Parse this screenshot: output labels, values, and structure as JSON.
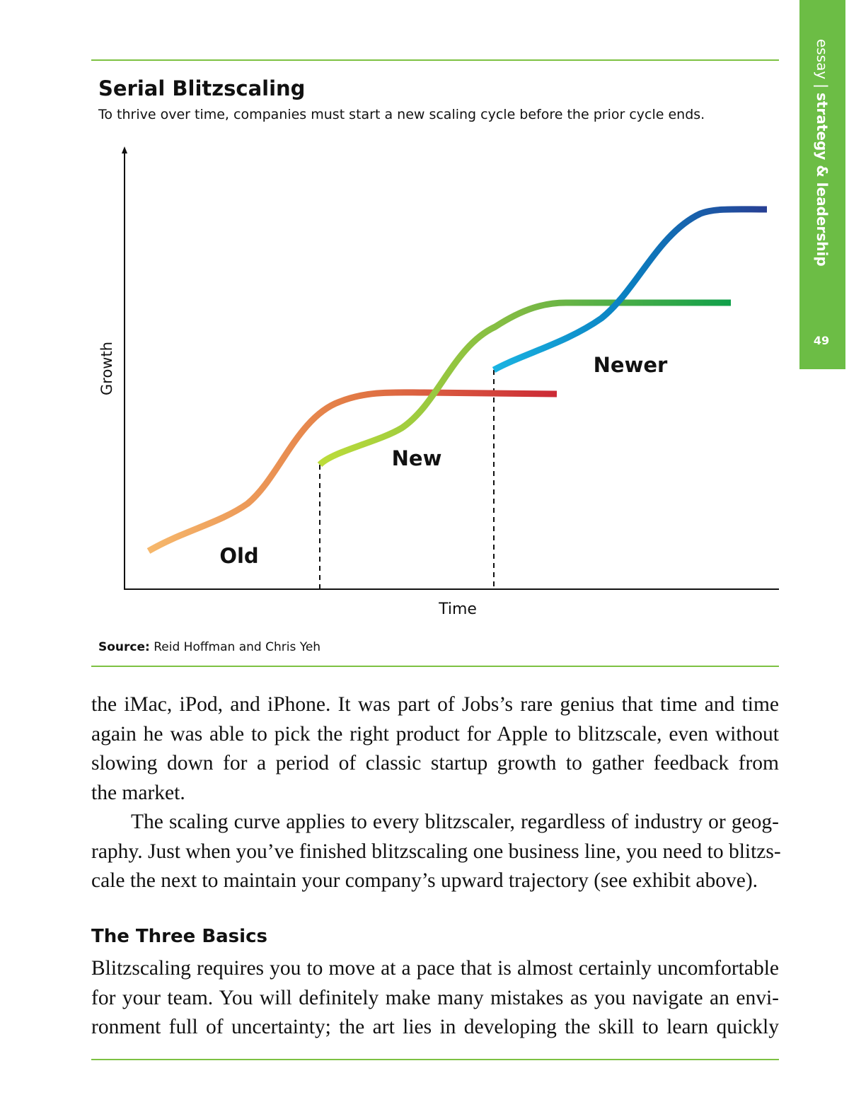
{
  "sidebar": {
    "section": "essay",
    "topic": "strategy & leadership",
    "page_number": "49"
  },
  "figure": {
    "title": "Serial Blitzscaling",
    "subtitle": "To thrive over time, companies must start a new scaling cycle before the prior cycle ends.",
    "y_axis_label": "Growth",
    "x_axis_label": "Time",
    "curve_labels": [
      "Old",
      "New",
      "Newer"
    ],
    "source_label": "Source:",
    "source": "Reid Hoffman and Chris Yeh"
  },
  "body": {
    "paragraphs": [
      {
        "lines": [
          "the iMac, iPod, and iPhone. It was part of Jobs’s rare genius that time and time",
          "again he was able to pick the right product for Apple to blitzscale, even without",
          "slowing down for a period of classic startup growth to gather feedback from",
          "the market."
        ]
      },
      {
        "lines": [
          "The scaling curve applies to every blitzscaler, regardless of industry or geog-",
          "raphy. Just when you’ve finished blitzscaling one business line, you need to blitzs-",
          "cale the next to maintain your company’s upward trajectory (see exhibit above)."
        ]
      }
    ],
    "heading": "The Three Basics",
    "last_paragraph": {
      "lines": [
        "Blitzscaling requires you to move at a pace that is almost certainly uncomfortable",
        "for your team. You will definitely make many mistakes as you navigate an envi-",
        "ronment full of uncertainty; the art lies in developing the skill to learn quickly"
      ]
    }
  }
}
